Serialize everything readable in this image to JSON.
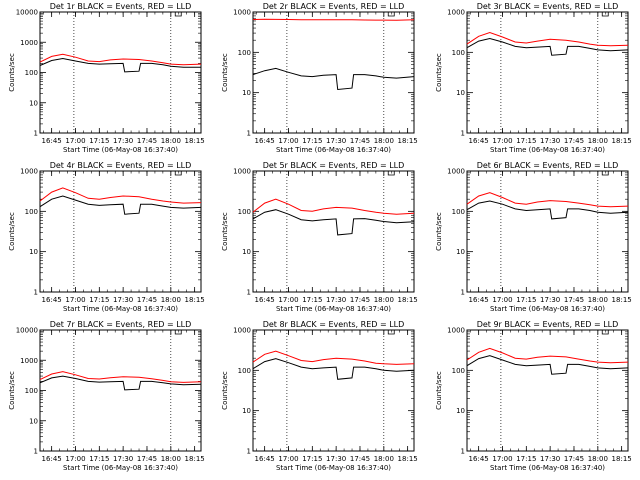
{
  "colors": {
    "events": "#000000",
    "lld": "#ff0000",
    "axes": "#000000",
    "background": "#ffffff"
  },
  "chart_data": [
    {
      "type": "line",
      "title": "Det 1r BLACK = Events, RED = LLD",
      "xlabel": "Start Time (06-May-08 16:37:40)",
      "ylabel": "Counts/sec",
      "y_scale": "log",
      "ylim": [
        1,
        10000
      ],
      "y_ticks": [
        "1",
        "10",
        "100",
        "1000",
        "10000"
      ],
      "x_ticks": [
        "16:45",
        "17:00",
        "17:15",
        "17:30",
        "17:45",
        "18:00",
        "18:15"
      ],
      "x_range": [
        "16:37:40",
        "18:19:00"
      ],
      "vlines": [
        "16:59",
        "18:00"
      ],
      "series": [
        {
          "name": "Events",
          "x": [
            "16:37:40",
            "16:45",
            "16:52",
            "17:00",
            "17:08",
            "17:15",
            "17:22",
            "17:30",
            "17:31",
            "17:40",
            "17:41",
            "17:48",
            "17:55",
            "18:00",
            "18:08",
            "18:19"
          ],
          "values": [
            170,
            250,
            290,
            240,
            200,
            190,
            195,
            200,
            105,
            110,
            200,
            200,
            180,
            160,
            150,
            150
          ]
        },
        {
          "name": "LLD",
          "x": [
            "16:37:40",
            "16:45",
            "16:52",
            "17:00",
            "17:08",
            "17:15",
            "17:22",
            "17:30",
            "17:40",
            "17:48",
            "17:55",
            "18:00",
            "18:08",
            "18:19"
          ],
          "values": [
            220,
            340,
            400,
            320,
            240,
            230,
            260,
            280,
            270,
            240,
            210,
            190,
            180,
            190
          ]
        }
      ]
    },
    {
      "type": "line",
      "title": "Det 2r BLACK = Events, RED = LLD",
      "xlabel": "Start Time (06-May-08 16:37:40)",
      "ylabel": "Counts/sec",
      "y_scale": "log",
      "ylim": [
        1,
        1000
      ],
      "y_ticks": [
        "1",
        "10",
        "100",
        "1000"
      ],
      "x_ticks": [
        "16:45",
        "17:00",
        "17:15",
        "17:30",
        "17:45",
        "18:00",
        "18:15"
      ],
      "x_range": [
        "16:37:40",
        "18:19:00"
      ],
      "vlines": [
        "16:59",
        "18:00"
      ],
      "series": [
        {
          "name": "Events",
          "x": [
            "16:37:40",
            "16:45",
            "16:52",
            "17:00",
            "17:08",
            "17:15",
            "17:22",
            "17:30",
            "17:31",
            "17:40",
            "17:41",
            "17:48",
            "17:55",
            "18:00",
            "18:08",
            "18:19"
          ],
          "values": [
            28,
            35,
            40,
            32,
            26,
            25,
            27,
            28,
            12,
            13,
            28,
            28,
            26,
            24,
            23,
            25
          ]
        },
        {
          "name": "LLD",
          "x": [
            "16:37:40",
            "16:45",
            "16:52",
            "17:00",
            "17:08",
            "17:15",
            "17:22",
            "17:30",
            "17:40",
            "17:48",
            "17:55",
            "18:00",
            "18:08",
            "18:19"
          ],
          "values": [
            650,
            660,
            655,
            650,
            645,
            640,
            640,
            645,
            640,
            635,
            630,
            630,
            625,
            640
          ]
        }
      ]
    },
    {
      "type": "line",
      "title": "Det 3r BLACK = Events, RED = LLD",
      "xlabel": "Start Time (06-May-08 16:37:40)",
      "ylabel": "Counts/sec",
      "y_scale": "log",
      "ylim": [
        1,
        1000
      ],
      "y_ticks": [
        "1",
        "10",
        "100",
        "1000"
      ],
      "x_ticks": [
        "16:45",
        "17:00",
        "17:15",
        "17:30",
        "17:45",
        "18:00",
        "18:15"
      ],
      "x_range": [
        "16:37:40",
        "18:19:00"
      ],
      "vlines": [
        "16:59",
        "18:00"
      ],
      "series": [
        {
          "name": "Events",
          "x": [
            "16:37:40",
            "16:45",
            "16:52",
            "17:00",
            "17:08",
            "17:15",
            "17:22",
            "17:30",
            "17:31",
            "17:40",
            "17:41",
            "17:48",
            "17:55",
            "18:00",
            "18:08",
            "18:19"
          ],
          "values": [
            130,
            190,
            220,
            180,
            140,
            130,
            135,
            140,
            85,
            90,
            140,
            140,
            125,
            115,
            110,
            115
          ]
        },
        {
          "name": "LLD",
          "x": [
            "16:37:40",
            "16:45",
            "16:52",
            "17:00",
            "17:08",
            "17:15",
            "17:22",
            "17:30",
            "17:40",
            "17:48",
            "17:55",
            "18:00",
            "18:08",
            "18:19"
          ],
          "values": [
            160,
            250,
            310,
            240,
            180,
            170,
            190,
            210,
            200,
            180,
            160,
            150,
            145,
            150
          ]
        }
      ]
    },
    {
      "type": "line",
      "title": "Det 4r BLACK = Events, RED = LLD",
      "xlabel": "Start Time (06-May-08 16:37:40)",
      "ylabel": "Counts/sec",
      "y_scale": "log",
      "ylim": [
        1,
        1000
      ],
      "y_ticks": [
        "1",
        "10",
        "100",
        "1000"
      ],
      "x_ticks": [
        "16:45",
        "17:00",
        "17:15",
        "17:30",
        "17:45",
        "18:00",
        "18:15"
      ],
      "x_range": [
        "16:37:40",
        "18:19:00"
      ],
      "vlines": [
        "16:59",
        "18:00"
      ],
      "series": [
        {
          "name": "Events",
          "x": [
            "16:37:40",
            "16:45",
            "16:52",
            "17:00",
            "17:08",
            "17:15",
            "17:22",
            "17:30",
            "17:31",
            "17:40",
            "17:41",
            "17:48",
            "17:55",
            "18:00",
            "18:08",
            "18:19"
          ],
          "values": [
            130,
            200,
            240,
            190,
            150,
            140,
            145,
            150,
            85,
            90,
            150,
            150,
            135,
            125,
            120,
            125
          ]
        },
        {
          "name": "LLD",
          "x": [
            "16:37:40",
            "16:45",
            "16:52",
            "17:00",
            "17:08",
            "17:15",
            "17:22",
            "17:30",
            "17:40",
            "17:48",
            "17:55",
            "18:00",
            "18:08",
            "18:19"
          ],
          "values": [
            180,
            300,
            380,
            290,
            210,
            200,
            220,
            240,
            230,
            200,
            180,
            170,
            160,
            165
          ]
        }
      ]
    },
    {
      "type": "line",
      "title": "Det 5r BLACK = Events, RED = LLD",
      "xlabel": "Start Time (06-May-08 16:37:40)",
      "ylabel": "Counts/sec",
      "y_scale": "log",
      "ylim": [
        1,
        1000
      ],
      "y_ticks": [
        "1",
        "10",
        "100",
        "1000"
      ],
      "x_ticks": [
        "16:45",
        "17:00",
        "17:15",
        "17:30",
        "17:45",
        "18:00",
        "18:15"
      ],
      "x_range": [
        "16:37:40",
        "18:19:00"
      ],
      "vlines": [
        "16:59",
        "18:00"
      ],
      "series": [
        {
          "name": "Events",
          "x": [
            "16:37:40",
            "16:45",
            "16:52",
            "17:00",
            "17:08",
            "17:15",
            "17:22",
            "17:30",
            "17:31",
            "17:40",
            "17:41",
            "17:48",
            "17:55",
            "18:00",
            "18:08",
            "18:19"
          ],
          "values": [
            65,
            95,
            110,
            85,
            62,
            58,
            62,
            65,
            26,
            28,
            65,
            66,
            60,
            56,
            52,
            55
          ]
        },
        {
          "name": "LLD",
          "x": [
            "16:37:40",
            "16:45",
            "16:52",
            "17:00",
            "17:08",
            "17:15",
            "17:22",
            "17:30",
            "17:40",
            "17:48",
            "17:55",
            "18:00",
            "18:08",
            "18:19"
          ],
          "values": [
            95,
            160,
            200,
            150,
            105,
            100,
            115,
            125,
            120,
            105,
            95,
            90,
            85,
            90
          ]
        }
      ]
    },
    {
      "type": "line",
      "title": "Det 6r BLACK = Events, RED = LLD",
      "xlabel": "Start Time (06-May-08 16:37:40)",
      "ylabel": "Counts/sec",
      "y_scale": "log",
      "ylim": [
        1,
        1000
      ],
      "y_ticks": [
        "1",
        "10",
        "100",
        "1000"
      ],
      "x_ticks": [
        "16:45",
        "17:00",
        "17:15",
        "17:30",
        "17:45",
        "18:00",
        "18:15"
      ],
      "x_range": [
        "16:37:40",
        "18:19:00"
      ],
      "vlines": [
        "16:59",
        "18:00"
      ],
      "series": [
        {
          "name": "Events",
          "x": [
            "16:37:40",
            "16:45",
            "16:52",
            "17:00",
            "17:08",
            "17:15",
            "17:22",
            "17:30",
            "17:31",
            "17:40",
            "17:41",
            "17:48",
            "17:55",
            "18:00",
            "18:08",
            "18:19"
          ],
          "values": [
            110,
            160,
            180,
            150,
            115,
            105,
            110,
            115,
            65,
            70,
            115,
            115,
            105,
            95,
            90,
            95
          ]
        },
        {
          "name": "LLD",
          "x": [
            "16:37:40",
            "16:45",
            "16:52",
            "17:00",
            "17:08",
            "17:15",
            "17:22",
            "17:30",
            "17:40",
            "17:48",
            "17:55",
            "18:00",
            "18:08",
            "18:19"
          ],
          "values": [
            150,
            240,
            290,
            220,
            160,
            150,
            170,
            185,
            175,
            160,
            145,
            135,
            130,
            135
          ]
        }
      ]
    },
    {
      "type": "line",
      "title": "Det 7r BLACK = Events, RED = LLD",
      "xlabel": "Start Time (06-May-08 16:37:40)",
      "ylabel": "Counts/sec",
      "y_scale": "log",
      "ylim": [
        1,
        10000
      ],
      "y_ticks": [
        "1",
        "10",
        "100",
        "1000",
        "10000"
      ],
      "x_ticks": [
        "16:45",
        "17:00",
        "17:15",
        "17:30",
        "17:45",
        "18:00",
        "18:15"
      ],
      "x_range": [
        "16:37:40",
        "18:19:00"
      ],
      "vlines": [
        "16:59",
        "18:00"
      ],
      "series": [
        {
          "name": "Events",
          "x": [
            "16:37:40",
            "16:45",
            "16:52",
            "17:00",
            "17:08",
            "17:15",
            "17:22",
            "17:30",
            "17:31",
            "17:40",
            "17:41",
            "17:48",
            "17:55",
            "18:00",
            "18:08",
            "18:19"
          ],
          "values": [
            180,
            260,
            300,
            250,
            200,
            190,
            195,
            200,
            105,
            110,
            200,
            200,
            180,
            165,
            155,
            160
          ]
        },
        {
          "name": "LLD",
          "x": [
            "16:37:40",
            "16:45",
            "16:52",
            "17:00",
            "17:08",
            "17:15",
            "17:22",
            "17:30",
            "17:40",
            "17:48",
            "17:55",
            "18:00",
            "18:08",
            "18:19"
          ],
          "values": [
            230,
            350,
            420,
            330,
            250,
            240,
            265,
            285,
            275,
            245,
            215,
            195,
            185,
            195
          ]
        }
      ]
    },
    {
      "type": "line",
      "title": "Det 8r BLACK = Events, RED = LLD",
      "xlabel": "Start Time (06-May-08 16:37:40)",
      "ylabel": "Counts/sec",
      "y_scale": "log",
      "ylim": [
        1,
        1000
      ],
      "y_ticks": [
        "1",
        "10",
        "100",
        "1000"
      ],
      "x_ticks": [
        "16:45",
        "17:00",
        "17:15",
        "17:30",
        "17:45",
        "18:00",
        "18:15"
      ],
      "x_range": [
        "16:37:40",
        "18:19:00"
      ],
      "vlines": [
        "16:59",
        "18:00"
      ],
      "series": [
        {
          "name": "Events",
          "x": [
            "16:37:40",
            "16:45",
            "16:52",
            "17:00",
            "17:08",
            "17:15",
            "17:22",
            "17:30",
            "17:31",
            "17:40",
            "17:41",
            "17:48",
            "17:55",
            "18:00",
            "18:08",
            "18:19"
          ],
          "values": [
            110,
            165,
            195,
            155,
            120,
            110,
            115,
            120,
            60,
            65,
            120,
            120,
            110,
            100,
            95,
            100
          ]
        },
        {
          "name": "LLD",
          "x": [
            "16:37:40",
            "16:45",
            "16:52",
            "17:00",
            "17:08",
            "17:15",
            "17:22",
            "17:30",
            "17:40",
            "17:48",
            "17:55",
            "18:00",
            "18:08",
            "18:19"
          ],
          "values": [
            160,
            250,
            300,
            230,
            175,
            165,
            185,
            200,
            190,
            170,
            150,
            145,
            140,
            145
          ]
        }
      ]
    },
    {
      "type": "line",
      "title": "Det 9r BLACK = Events, RED = LLD",
      "xlabel": "Start Time (06-May-08 16:37:40)",
      "ylabel": "Counts/sec",
      "y_scale": "log",
      "ylim": [
        1,
        1000
      ],
      "y_ticks": [
        "1",
        "10",
        "100",
        "1000"
      ],
      "x_ticks": [
        "16:45",
        "17:00",
        "17:15",
        "17:30",
        "17:45",
        "18:00",
        "18:15"
      ],
      "x_range": [
        "16:37:40",
        "18:19:00"
      ],
      "vlines": [
        "16:59",
        "18:00"
      ],
      "series": [
        {
          "name": "Events",
          "x": [
            "16:37:40",
            "16:45",
            "16:52",
            "17:00",
            "17:08",
            "17:15",
            "17:22",
            "17:30",
            "17:31",
            "17:40",
            "17:41",
            "17:48",
            "17:55",
            "18:00",
            "18:08",
            "18:19"
          ],
          "values": [
            130,
            195,
            230,
            180,
            140,
            130,
            135,
            140,
            80,
            85,
            140,
            140,
            125,
            115,
            110,
            115
          ]
        },
        {
          "name": "LLD",
          "x": [
            "16:37:40",
            "16:45",
            "16:52",
            "17:00",
            "17:08",
            "17:15",
            "17:22",
            "17:30",
            "17:40",
            "17:48",
            "17:55",
            "18:00",
            "18:08",
            "18:19"
          ],
          "values": [
            180,
            280,
            350,
            270,
            200,
            190,
            210,
            225,
            215,
            190,
            170,
            160,
            155,
            160
          ]
        }
      ]
    }
  ]
}
